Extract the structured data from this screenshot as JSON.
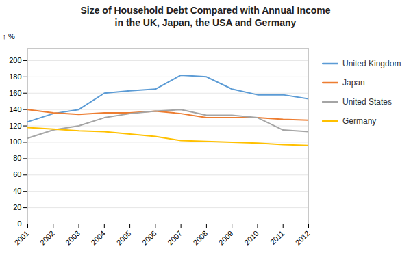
{
  "chart_data": {
    "type": "line",
    "title": "Size of Household Debt Compared with Annual Income\nin the UK, Japan, the USA and Germany",
    "x": [
      2001,
      2002,
      2003,
      2004,
      2005,
      2006,
      2007,
      2008,
      2009,
      2010,
      2011,
      2012
    ],
    "series": [
      {
        "name": "United Kingdom",
        "color": "#5B9BD5",
        "values": [
          125,
          135,
          140,
          160,
          163,
          165,
          182,
          180,
          165,
          158,
          158,
          153
        ]
      },
      {
        "name": "Japan",
        "color": "#ED7D31",
        "values": [
          140,
          136,
          134,
          136,
          136,
          138,
          135,
          130,
          130,
          130,
          128,
          127
        ]
      },
      {
        "name": "United States",
        "color": "#A5A5A5",
        "values": [
          105,
          115,
          120,
          130,
          135,
          138,
          140,
          133,
          133,
          130,
          115,
          113
        ]
      },
      {
        "name": "Germany",
        "color": "#FFC000",
        "values": [
          118,
          116,
          114,
          113,
          110,
          107,
          102,
          101,
          100,
          99,
          97,
          96
        ]
      }
    ],
    "ylabel": "%",
    "xlim": [
      2001,
      2012
    ],
    "xticks": [
      2001,
      2002,
      2003,
      2004,
      2005,
      2006,
      2007,
      2008,
      2009,
      2010,
      2011,
      2012
    ],
    "ylim": [
      0,
      215
    ],
    "yticks": [
      0,
      20,
      40,
      60,
      80,
      100,
      120,
      140,
      160,
      180,
      200
    ],
    "grid": true,
    "legend": "right"
  }
}
